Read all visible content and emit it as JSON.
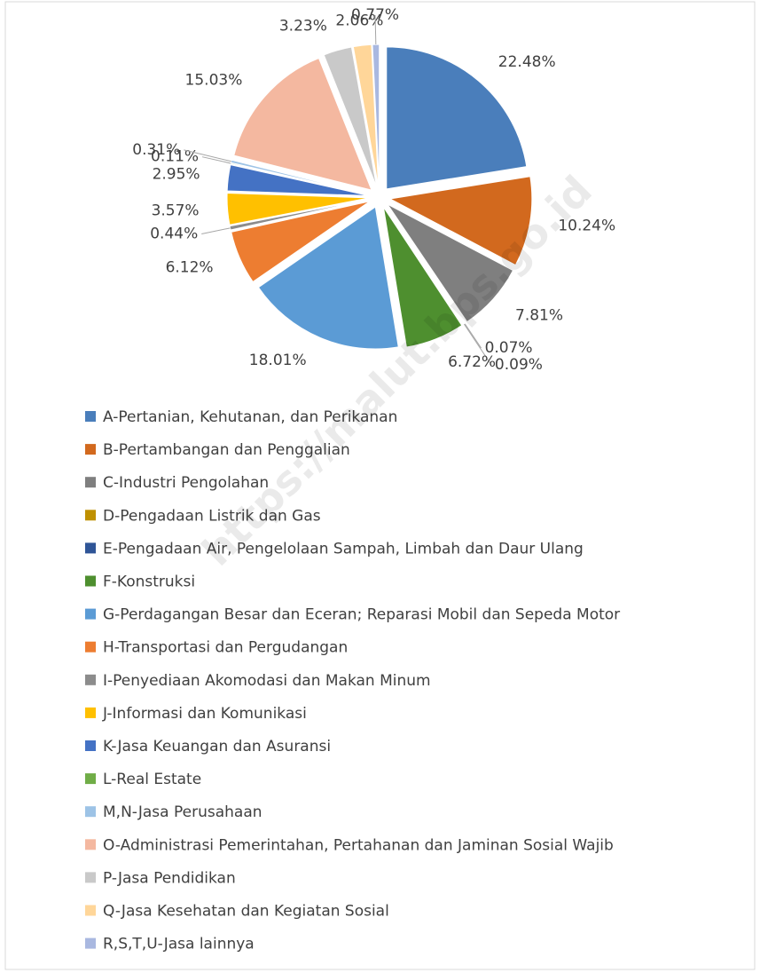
{
  "chart_data": {
    "type": "pie",
    "categories": [
      "A-Pertanian, Kehutanan, dan Perikanan",
      "B-Pertambangan dan Penggalian",
      "C-Industri Pengolahan",
      "D-Pengadaan Listrik dan Gas",
      "E-Pengadaan Air, Pengelolaan Sampah, Limbah dan Daur Ulang",
      "F-Konstruksi",
      "G-Perdagangan Besar dan Eceran; Reparasi Mobil dan Sepeda Motor",
      "H-Transportasi dan Pergudangan",
      "I-Penyediaan Akomodasi dan Makan Minum",
      "J-Informasi dan Komunikasi",
      "K-Jasa Keuangan dan Asuransi",
      "L-Real Estate",
      "M,N-Jasa Perusahaan",
      "O-Administrasi Pemerintahan, Pertahanan dan Jaminan Sosial Wajib",
      "P-Jasa Pendidikan",
      "Q-Jasa Kesehatan dan Kegiatan Sosial",
      "R,S,T,U-Jasa lainnya"
    ],
    "values": [
      22.48,
      10.24,
      7.81,
      0.07,
      0.09,
      6.72,
      18.01,
      6.12,
      0.44,
      3.57,
      2.95,
      0.11,
      0.31,
      15.03,
      3.23,
      2.06,
      0.77
    ],
    "value_labels": [
      "22.48%",
      "10.24%",
      "7.81%",
      "0.07%",
      "0.09%",
      "6.72%",
      "18.01%",
      "6.12%",
      "0.44%",
      "3.57%",
      "2.95%",
      "0.11%",
      "0.31%",
      "15.03%",
      "3.23%",
      "2.06%",
      "0.77%"
    ],
    "colors": [
      "#4a7ebb",
      "#d2691e",
      "#7f7f7f",
      "#bf9000",
      "#2f5597",
      "#4e8f2f",
      "#5b9bd5",
      "#ed7d31",
      "#8c8c8c",
      "#ffc000",
      "#4472c4",
      "#70ad47",
      "#9dc3e6",
      "#f4b8a0",
      "#c9c9c9",
      "#ffd699",
      "#a9b8e0"
    ],
    "legend": "bottom",
    "watermark": "https://malut.bps.go.id"
  }
}
